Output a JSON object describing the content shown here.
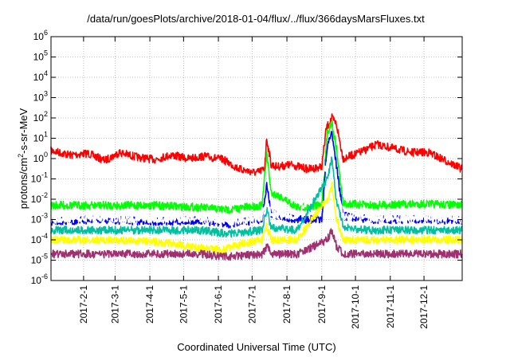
{
  "chart_data": {
    "type": "line",
    "title": "/data/run/goesPlots/archive/2018-01-04/flux/../flux/366daysMarsFluxes.txt",
    "xlabel": "Coordinated Universal Time (UTC)",
    "ylabel": "protons/cm2-s-sr-MeV",
    "yscale": "log",
    "ylim": [
      1e-06,
      1000000.0
    ],
    "xlim": [
      "2017-01-03",
      "2018-01-04"
    ],
    "grid": true,
    "x_ticks": [
      "2017-2-1",
      "2017-3-1",
      "2017-4-1",
      "2017-5-1",
      "2017-6-1",
      "2017-7-1",
      "2017-8-1",
      "2017-9-1",
      "2017-10-1",
      "2017-11-1",
      "2017-12-1"
    ],
    "y_ticks": [
      "10^-6",
      "10^-5",
      "10^-4",
      "10^-3",
      "10^-2",
      "10^-1",
      "10^0",
      "10^1",
      "10^2",
      "10^3",
      "10^4",
      "10^5",
      "10^6"
    ],
    "series": [
      {
        "color": "#ff0000",
        "x": [
          "2017-01-03",
          "2017-01-20",
          "2017-02-05",
          "2017-02-20",
          "2017-03-05",
          "2017-03-20",
          "2017-04-05",
          "2017-04-20",
          "2017-05-05",
          "2017-05-20",
          "2017-06-05",
          "2017-06-20",
          "2017-07-05",
          "2017-07-12",
          "2017-07-14",
          "2017-07-18",
          "2017-07-23",
          "2017-08-05",
          "2017-08-20",
          "2017-09-01",
          "2017-09-05",
          "2017-09-10",
          "2017-09-14",
          "2017-09-20",
          "2017-10-05",
          "2017-10-20",
          "2017-11-05",
          "2017-11-20",
          "2017-12-05",
          "2017-12-20",
          "2018-01-04"
        ],
        "y": [
          2.5,
          1.5,
          1.8,
          0.8,
          2.0,
          1.2,
          0.9,
          1.5,
          1.0,
          1.3,
          0.9,
          0.3,
          0.2,
          0.3,
          10,
          0.5,
          0.4,
          0.5,
          0.3,
          0.4,
          30,
          100,
          50,
          1.0,
          2.0,
          5.0,
          3.0,
          2.0,
          2.0,
          0.8,
          0.3
        ]
      },
      {
        "color": "#00ff00",
        "x": [
          "2017-01-03",
          "2017-02-15",
          "2017-04-01",
          "2017-05-15",
          "2017-06-10",
          "2017-06-25",
          "2017-07-10",
          "2017-07-14",
          "2017-07-18",
          "2017-07-25",
          "2017-08-10",
          "2017-09-01",
          "2017-09-06",
          "2017-09-10",
          "2017-09-14",
          "2017-09-20",
          "2017-10-15",
          "2017-12-01",
          "2018-01-04"
        ],
        "y": [
          0.005,
          0.005,
          0.005,
          0.004,
          0.003,
          0.004,
          0.005,
          2.0,
          0.02,
          0.015,
          0.004,
          0.005,
          20,
          60,
          3,
          0.006,
          0.005,
          0.006,
          0.005
        ]
      },
      {
        "color": "#0000ff",
        "x": [
          "2017-01-03",
          "2017-02-15",
          "2017-04-01",
          "2017-05-15",
          "2017-06-10",
          "2017-06-25",
          "2017-07-10",
          "2017-07-14",
          "2017-07-18",
          "2017-07-25",
          "2017-08-10",
          "2017-09-01",
          "2017-09-06",
          "2017-09-10",
          "2017-09-14",
          "2017-09-20",
          "2017-10-15",
          "2017-12-01",
          "2018-01-04"
        ],
        "y": [
          0.0008,
          0.001,
          0.0008,
          0.0009,
          0.0006,
          0.0008,
          0.001,
          0.05,
          0.002,
          0.0015,
          0.001,
          0.001,
          5,
          20,
          0.5,
          0.0015,
          0.001,
          0.001,
          0.0009
        ]
      },
      {
        "color": "#ffffff",
        "x": [
          "2017-01-03",
          "2017-02-15",
          "2017-04-01",
          "2017-05-15",
          "2017-06-10",
          "2017-07-10",
          "2017-07-14",
          "2017-07-18",
          "2017-08-10",
          "2017-09-06",
          "2017-09-10",
          "2017-09-14",
          "2017-09-20",
          "2017-10-15",
          "2017-12-01",
          "2018-01-04"
        ],
        "y": [
          0.001,
          0.0012,
          0.001,
          0.0012,
          0.0008,
          0.0012,
          0.01,
          0.002,
          0.0012,
          0.5,
          2,
          0.05,
          0.0015,
          0.0012,
          0.0012,
          0.001
        ]
      },
      {
        "color": "#00c0a0",
        "x": [
          "2017-01-03",
          "2017-02-15",
          "2017-04-01",
          "2017-05-15",
          "2017-06-10",
          "2017-07-10",
          "2017-07-14",
          "2017-07-18",
          "2017-08-10",
          "2017-09-06",
          "2017-09-10",
          "2017-09-14",
          "2017-09-20",
          "2017-10-15",
          "2017-12-01",
          "2018-01-04"
        ],
        "y": [
          0.0003,
          0.0003,
          0.0003,
          0.0003,
          0.0002,
          0.0003,
          0.003,
          0.0004,
          0.0003,
          0.1,
          1,
          0.01,
          0.0004,
          0.0003,
          0.0003,
          0.0003
        ]
      },
      {
        "color": "#ffff00",
        "x": [
          "2017-01-03",
          "2017-02-15",
          "2017-04-01",
          "2017-05-15",
          "2017-06-05",
          "2017-06-20",
          "2017-07-10",
          "2017-07-14",
          "2017-07-18",
          "2017-08-10",
          "2017-09-06",
          "2017-09-10",
          "2017-09-14",
          "2017-09-20",
          "2017-10-15",
          "2017-12-01",
          "2018-01-04"
        ],
        "y": [
          0.0001,
          0.0001,
          9e-05,
          4e-05,
          3e-05,
          6e-05,
          0.0001,
          0.0005,
          0.0001,
          0.0001,
          0.01,
          0.05,
          0.001,
          0.0001,
          0.0001,
          0.0001,
          0.0001
        ]
      },
      {
        "color": "#a03070",
        "x": [
          "2017-01-03",
          "2017-02-15",
          "2017-04-01",
          "2017-05-15",
          "2017-06-10",
          "2017-07-10",
          "2017-07-14",
          "2017-07-18",
          "2017-08-10",
          "2017-09-06",
          "2017-09-10",
          "2017-09-14",
          "2017-09-20",
          "2017-10-15",
          "2017-12-01",
          "2018-01-04"
        ],
        "y": [
          2e-05,
          2e-05,
          2e-05,
          2e-05,
          1.5e-05,
          2e-05,
          5e-05,
          2e-05,
          2e-05,
          0.0001,
          0.0003,
          5e-05,
          2e-05,
          2e-05,
          2e-05,
          2e-05
        ]
      }
    ]
  }
}
